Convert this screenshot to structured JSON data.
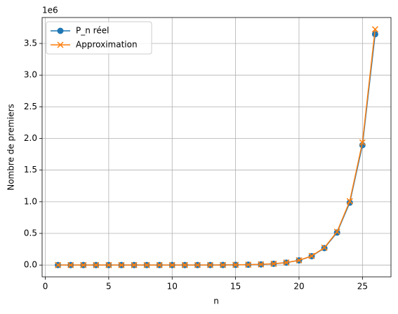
{
  "chart_data": {
    "type": "line",
    "x_label": "n",
    "y_label": "Nombre de premiers",
    "y_offset_label": "1e6",
    "x": [
      1,
      2,
      3,
      4,
      5,
      6,
      7,
      8,
      9,
      10,
      11,
      12,
      13,
      14,
      15,
      16,
      17,
      18,
      19,
      20,
      21,
      22,
      23,
      24,
      25,
      26
    ],
    "series": [
      {
        "name": "P_n réel",
        "color": "#1f77b4",
        "marker": "circle",
        "values": [
          1,
          2,
          2,
          5,
          7,
          13,
          23,
          43,
          75,
          137,
          255,
          464,
          872,
          1612,
          3030,
          5709,
          10749,
          20390,
          38635,
          73586,
          140336,
          268216,
          513708,
          985818,
          1894120,
          3645744
        ]
      },
      {
        "name": "Approximation",
        "color": "#ff7f0e",
        "marker": "x",
        "values": [
          2.9,
          2.9,
          3.8,
          5.8,
          9.2,
          15.4,
          26.4,
          46.2,
          82.1,
          147.7,
          268.6,
          492.4,
          909.1,
          1688,
          3152,
          5909,
          11123,
          21010,
          39809,
          75639,
          144073,
          275049,
          526182,
          1008525,
          1936346,
          3723752
        ]
      }
    ],
    "xlim": [
      -0.25,
      27.25
    ],
    "ylim": [
      -186188,
      3909940
    ],
    "xticks": [
      0,
      5,
      10,
      15,
      20,
      25
    ],
    "yticks": [
      {
        "value": 0,
        "label": "0.0"
      },
      {
        "value": 500000,
        "label": "0.5"
      },
      {
        "value": 1000000,
        "label": "1.0"
      },
      {
        "value": 1500000,
        "label": "1.5"
      },
      {
        "value": 2000000,
        "label": "2.0"
      },
      {
        "value": 2500000,
        "label": "2.5"
      },
      {
        "value": 3000000,
        "label": "3.0"
      },
      {
        "value": 3500000,
        "label": "3.5"
      }
    ],
    "grid": true,
    "legend": "upper left"
  }
}
